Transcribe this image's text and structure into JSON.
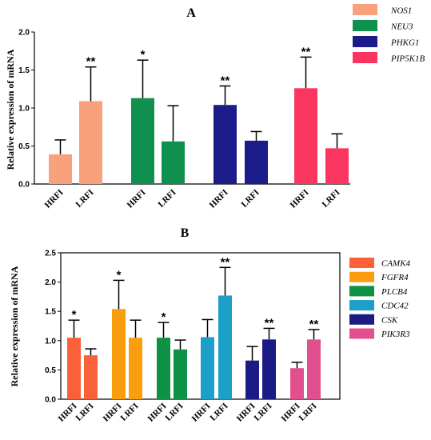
{
  "chart_data": [
    {
      "panel": "A",
      "type": "bar",
      "title": "A",
      "ylabel": "Relative expression of mRNA",
      "ylim": [
        0,
        2.0
      ],
      "yticks": [
        "0.0",
        "0.5",
        "1.0",
        "1.5",
        "2.0"
      ],
      "categories": [
        "HRFI",
        "LRFI"
      ],
      "legend_position": "top-right",
      "series": [
        {
          "name": "NOS1",
          "color": "#f9a07c",
          "values": [
            0.39,
            1.09
          ],
          "errors": [
            0.19,
            0.45
          ],
          "marks": [
            "",
            "**"
          ]
        },
        {
          "name": "NEU3",
          "color": "#10904e",
          "values": [
            1.13,
            0.56
          ],
          "errors": [
            0.5,
            0.47
          ],
          "marks": [
            "*",
            ""
          ]
        },
        {
          "name": "PHKG1",
          "color": "#1c1b8a",
          "values": [
            1.04,
            0.57
          ],
          "errors": [
            0.25,
            0.12
          ],
          "marks": [
            "**",
            ""
          ]
        },
        {
          "name": "PIP5K1B",
          "color": "#fa3560",
          "values": [
            1.26,
            0.47
          ],
          "errors": [
            0.41,
            0.19
          ],
          "marks": [
            "**",
            ""
          ]
        }
      ]
    },
    {
      "panel": "B",
      "type": "bar",
      "title": "B",
      "ylabel": "Relative expression of mRNA",
      "ylim": [
        0,
        2.5
      ],
      "yticks": [
        "0.0",
        "0.5",
        "1.0",
        "1.5",
        "2.0",
        "2.5"
      ],
      "categories": [
        "HRFI",
        "LRFI"
      ],
      "legend_position": "right",
      "series": [
        {
          "name": "CAMK4",
          "color": "#fb6138",
          "values": [
            1.05,
            0.75
          ],
          "errors": [
            0.3,
            0.11
          ],
          "marks": [
            "*",
            ""
          ]
        },
        {
          "name": "FGFR4",
          "color": "#fa9e10",
          "values": [
            1.54,
            1.05
          ],
          "errors": [
            0.49,
            0.3
          ],
          "marks": [
            "*",
            ""
          ]
        },
        {
          "name": "PLCB4",
          "color": "#0e9144",
          "values": [
            1.05,
            0.85
          ],
          "errors": [
            0.26,
            0.16
          ],
          "marks": [
            "*",
            ""
          ]
        },
        {
          "name": "CDC42",
          "color": "#1c9fc8",
          "values": [
            1.06,
            1.77
          ],
          "errors": [
            0.3,
            0.48
          ],
          "marks": [
            "",
            "**"
          ]
        },
        {
          "name": "CSK",
          "color": "#1b1b86",
          "values": [
            0.66,
            1.02
          ],
          "errors": [
            0.24,
            0.19
          ],
          "marks": [
            "",
            "**"
          ]
        },
        {
          "name": "PIK3R3",
          "color": "#e24f8f",
          "values": [
            0.53,
            1.02
          ],
          "errors": [
            0.1,
            0.17
          ],
          "marks": [
            "",
            "**"
          ]
        }
      ]
    }
  ]
}
